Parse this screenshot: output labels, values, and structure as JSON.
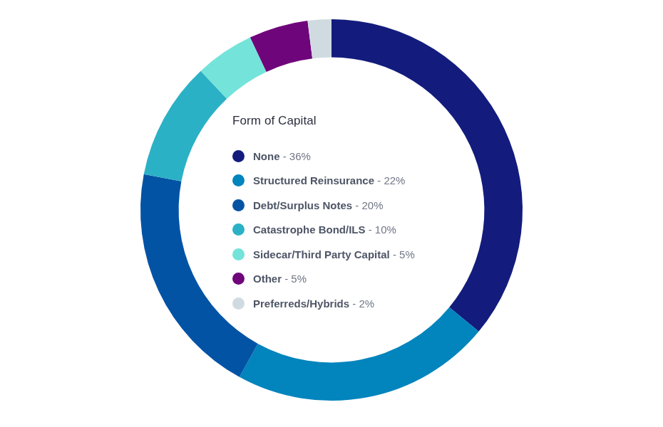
{
  "chart_data": {
    "type": "doughnut",
    "title": "Form of Capital",
    "categories": [
      "None",
      "Structured Reinsurance",
      "Debt/Surplus Notes",
      "Catastrophe Bond/ILS",
      "Sidecar/Third Party Capital",
      "Other",
      "Preferreds/Hybrids"
    ],
    "values": [
      36,
      22,
      20,
      10,
      5,
      5,
      2
    ],
    "value_labels": [
      "36%",
      "22%",
      "20%",
      "10%",
      "5%",
      "5%",
      "2%"
    ],
    "colors": [
      "#131c7c",
      "#0284bd",
      "#0353a5",
      "#2bb1c5",
      "#74e3d9",
      "#6f057b",
      "#d0dbe1"
    ],
    "legend": "center"
  }
}
